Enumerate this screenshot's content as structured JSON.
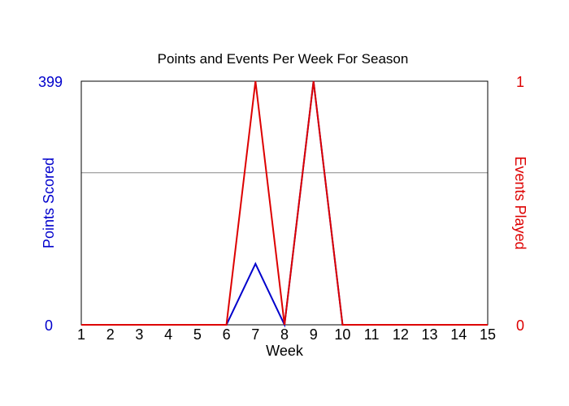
{
  "chart_data": {
    "type": "line",
    "title": "Points and Events Per Week For Season",
    "xlabel": "Week",
    "ylabel_left": "Points Scored",
    "ylabel_right": "Events Played",
    "x": [
      1,
      2,
      3,
      4,
      5,
      6,
      7,
      8,
      9,
      10,
      11,
      12,
      13,
      14,
      15
    ],
    "xlim": [
      1,
      15
    ],
    "ylim_left": [
      0,
      399
    ],
    "ylim_right": [
      0,
      1
    ],
    "left_ticks": [
      "0",
      "399"
    ],
    "right_ticks": [
      "0",
      "1"
    ],
    "grid": "single horizontal reference line",
    "series": [
      {
        "name": "Points Scored",
        "axis": "left",
        "color": "#0000cc",
        "values": [
          0,
          0,
          0,
          0,
          0,
          0,
          100,
          0,
          399,
          0,
          0,
          0,
          0,
          0,
          0
        ]
      },
      {
        "name": "Events Played",
        "axis": "right",
        "color": "#dd0000",
        "values": [
          0,
          0,
          0,
          0,
          0,
          0,
          1,
          0,
          1,
          0,
          0,
          0,
          0,
          0,
          0
        ]
      }
    ],
    "reference_line": {
      "axis": "left",
      "value": 249
    }
  },
  "colors": {
    "left_axis": "#0000cc",
    "right_axis": "#dd0000",
    "frame": "#000000",
    "reference_line": "#888888"
  }
}
